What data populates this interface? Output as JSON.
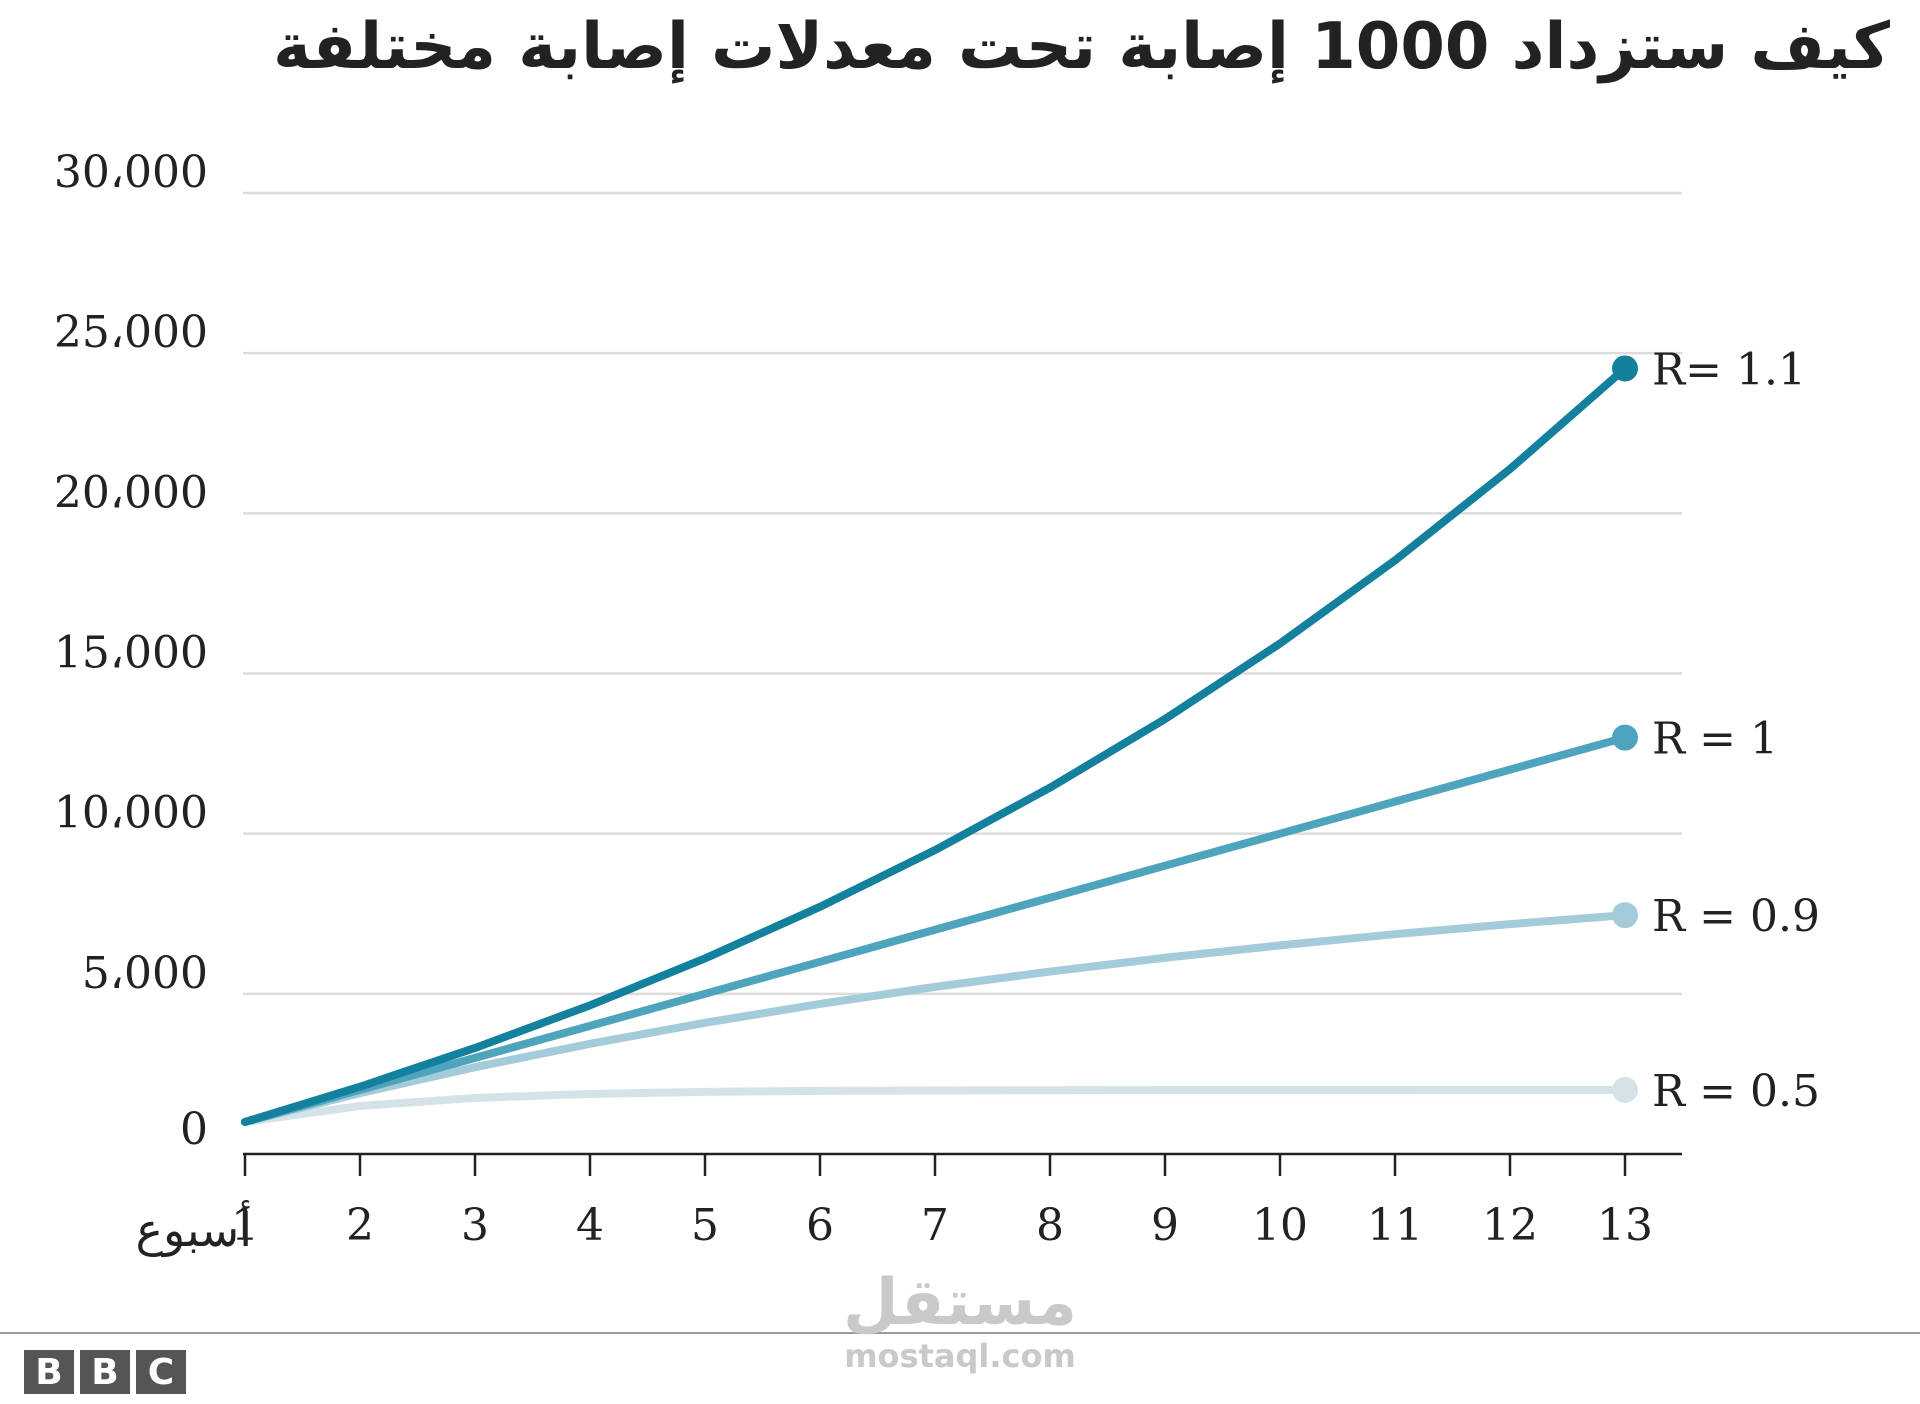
{
  "chart_data": {
    "type": "line",
    "title": "كيف ستزداد 1000 إصابة تحت معدلات إصابة مختلفة",
    "xlabel": "أسبوع",
    "ylabel": "",
    "x": [
      1,
      2,
      3,
      4,
      5,
      6,
      7,
      8,
      9,
      10,
      11,
      12,
      13
    ],
    "xlim": [
      1,
      13
    ],
    "ylim": [
      0,
      30000
    ],
    "yticks": [
      0,
      5000,
      10000,
      15000,
      20000,
      25000,
      30000
    ],
    "ytick_labels": [
      "0",
      "5،000",
      "10،000",
      "15،000",
      "20،000",
      "25،000",
      "30،000"
    ],
    "xtick_labels": [
      "1",
      "2",
      "3",
      "4",
      "5",
      "6",
      "7",
      "8",
      "9",
      "10",
      "11",
      "12",
      "13"
    ],
    "grid": true,
    "legend": "end-of-line labels",
    "series": [
      {
        "name": "R = 0.5",
        "color": "#d3e3e8",
        "values": [
          1000,
          1500,
          1750,
          1875,
          1938,
          1969,
          1984,
          1992,
          1996,
          1998,
          1999,
          2000,
          2000
        ]
      },
      {
        "name": "R = 0.9",
        "color": "#a4cbd9",
        "values": [
          1000,
          1900,
          2710,
          3439,
          4095,
          4686,
          5217,
          5695,
          6126,
          6513,
          6862,
          7176,
          7458
        ]
      },
      {
        "name": "R = 1",
        "color": "#4ea4bc",
        "values": [
          1000,
          2000,
          3000,
          4000,
          5000,
          6000,
          7000,
          8000,
          9000,
          10000,
          11000,
          12000,
          13000
        ]
      },
      {
        "name": "R= 1.1",
        "color": "#13809e",
        "values": [
          1000,
          2100,
          3310,
          4641,
          6105,
          7716,
          9487,
          11436,
          13579,
          15937,
          18531,
          21384,
          24523
        ]
      }
    ]
  },
  "branding": {
    "logo": [
      "B",
      "B",
      "C"
    ],
    "watermark_ar": "مستقل",
    "watermark_en": "mostaql.com"
  }
}
